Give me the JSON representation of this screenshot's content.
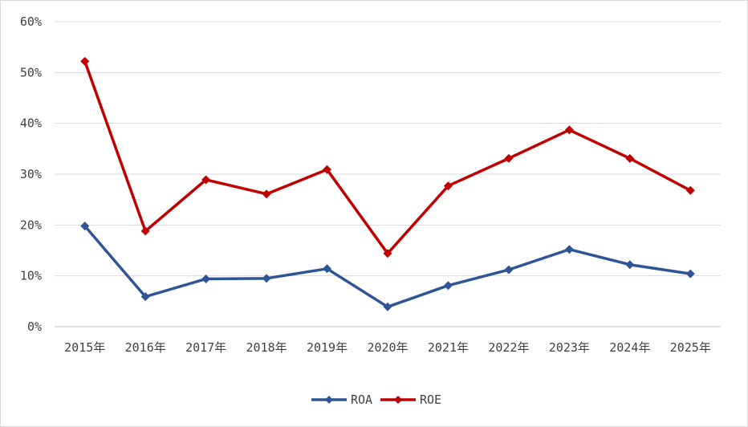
{
  "chart_data": {
    "type": "line",
    "title": "",
    "xlabel": "",
    "ylabel": "",
    "categories": [
      "2015年",
      "2016年",
      "2017年",
      "2018年",
      "2019年",
      "2020年",
      "2021年",
      "2022年",
      "2023年",
      "2024年",
      "2025年"
    ],
    "ylim": [
      0,
      60
    ],
    "yticks": [
      "0%",
      "10%",
      "20%",
      "30%",
      "40%",
      "50%",
      "60%"
    ],
    "grid": true,
    "legend_position": "bottom",
    "series": [
      {
        "name": "ROA",
        "color": "#2f5597",
        "marker": "diamond",
        "values": [
          19.8,
          5.9,
          9.4,
          9.5,
          11.4,
          3.9,
          8.1,
          11.2,
          15.2,
          12.2,
          10.4
        ]
      },
      {
        "name": "ROE",
        "color": "#c00000",
        "marker": "diamond",
        "values": [
          52.2,
          18.8,
          28.9,
          26.1,
          30.9,
          14.4,
          27.7,
          33.1,
          38.7,
          33.1,
          26.8
        ]
      }
    ]
  }
}
